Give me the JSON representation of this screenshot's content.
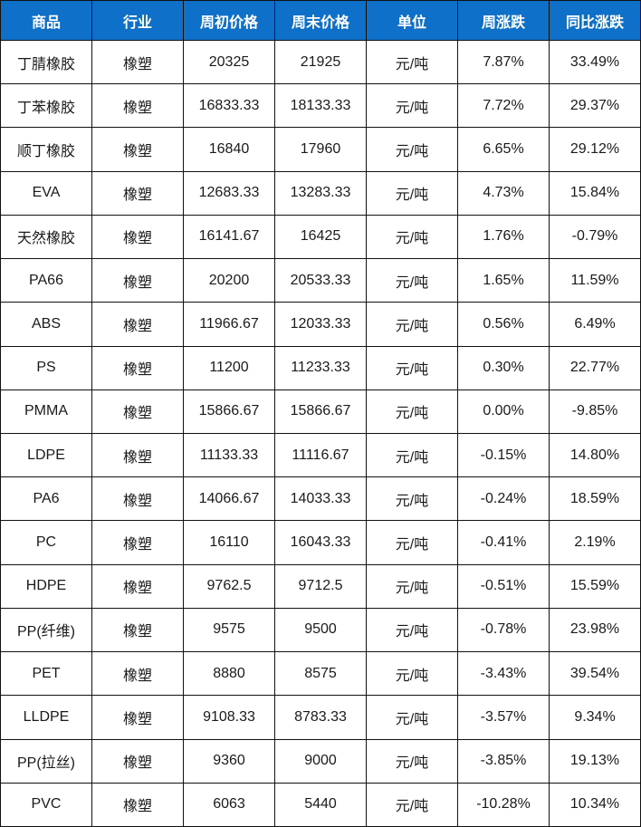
{
  "colors": {
    "header_bg": "#0e70c8",
    "header_text": "#ffffff",
    "up": "#f32b1f",
    "down": "#16984e",
    "flat": "#1a1a1a",
    "border": "#111111",
    "text": "#1a1a1a",
    "bg": "#ffffff"
  },
  "chart_data": {
    "type": "table",
    "columns": [
      "商品",
      "行业",
      "周初价格",
      "周末价格",
      "单位",
      "周涨跌",
      "同比涨跌"
    ],
    "rows": [
      {
        "cells": [
          "丁腈橡胶",
          "橡塑",
          "20325",
          "21925",
          "元/吨",
          "7.87%",
          "33.49%"
        ],
        "weekly_trend": "up",
        "yoy_trend": "up"
      },
      {
        "cells": [
          "丁苯橡胶",
          "橡塑",
          "16833.33",
          "18133.33",
          "元/吨",
          "7.72%",
          "29.37%"
        ],
        "weekly_trend": "up",
        "yoy_trend": "up"
      },
      {
        "cells": [
          "顺丁橡胶",
          "橡塑",
          "16840",
          "17960",
          "元/吨",
          "6.65%",
          "29.12%"
        ],
        "weekly_trend": "up",
        "yoy_trend": "up"
      },
      {
        "cells": [
          "EVA",
          "橡塑",
          "12683.33",
          "13283.33",
          "元/吨",
          "4.73%",
          "15.84%"
        ],
        "weekly_trend": "up",
        "yoy_trend": "up"
      },
      {
        "cells": [
          "天然橡胶",
          "橡塑",
          "16141.67",
          "16425",
          "元/吨",
          "1.76%",
          "-0.79%"
        ],
        "weekly_trend": "up",
        "yoy_trend": "down"
      },
      {
        "cells": [
          "PA66",
          "橡塑",
          "20200",
          "20533.33",
          "元/吨",
          "1.65%",
          "11.59%"
        ],
        "weekly_trend": "up",
        "yoy_trend": "up"
      },
      {
        "cells": [
          "ABS",
          "橡塑",
          "11966.67",
          "12033.33",
          "元/吨",
          "0.56%",
          "6.49%"
        ],
        "weekly_trend": "up",
        "yoy_trend": "up"
      },
      {
        "cells": [
          "PS",
          "橡塑",
          "11200",
          "11233.33",
          "元/吨",
          "0.30%",
          "22.77%"
        ],
        "weekly_trend": "up",
        "yoy_trend": "up"
      },
      {
        "cells": [
          "PMMA",
          "橡塑",
          "15866.67",
          "15866.67",
          "元/吨",
          "0.00%",
          "-9.85%"
        ],
        "weekly_trend": "flat",
        "yoy_trend": "down"
      },
      {
        "cells": [
          "LDPE",
          "橡塑",
          "11133.33",
          "11116.67",
          "元/吨",
          "-0.15%",
          "14.80%"
        ],
        "weekly_trend": "down",
        "yoy_trend": "up"
      },
      {
        "cells": [
          "PA6",
          "橡塑",
          "14066.67",
          "14033.33",
          "元/吨",
          "-0.24%",
          "18.59%"
        ],
        "weekly_trend": "down",
        "yoy_trend": "up"
      },
      {
        "cells": [
          "PC",
          "橡塑",
          "16110",
          "16043.33",
          "元/吨",
          "-0.41%",
          "2.19%"
        ],
        "weekly_trend": "down",
        "yoy_trend": "up"
      },
      {
        "cells": [
          "HDPE",
          "橡塑",
          "9762.5",
          "9712.5",
          "元/吨",
          "-0.51%",
          "15.59%"
        ],
        "weekly_trend": "down",
        "yoy_trend": "up"
      },
      {
        "cells": [
          "PP(纤维)",
          "橡塑",
          "9575",
          "9500",
          "元/吨",
          "-0.78%",
          "23.98%"
        ],
        "weekly_trend": "down",
        "yoy_trend": "up"
      },
      {
        "cells": [
          "PET",
          "橡塑",
          "8880",
          "8575",
          "元/吨",
          "-3.43%",
          "39.54%"
        ],
        "weekly_trend": "down",
        "yoy_trend": "up"
      },
      {
        "cells": [
          "LLDPE",
          "橡塑",
          "9108.33",
          "8783.33",
          "元/吨",
          "-3.57%",
          "9.34%"
        ],
        "weekly_trend": "down",
        "yoy_trend": "up"
      },
      {
        "cells": [
          "PP(拉丝)",
          "橡塑",
          "9360",
          "9000",
          "元/吨",
          "-3.85%",
          "19.13%"
        ],
        "weekly_trend": "down",
        "yoy_trend": "up"
      },
      {
        "cells": [
          "PVC",
          "橡塑",
          "6063",
          "5440",
          "元/吨",
          "-10.28%",
          "10.34%"
        ],
        "weekly_trend": "down",
        "yoy_trend": "up"
      }
    ]
  }
}
